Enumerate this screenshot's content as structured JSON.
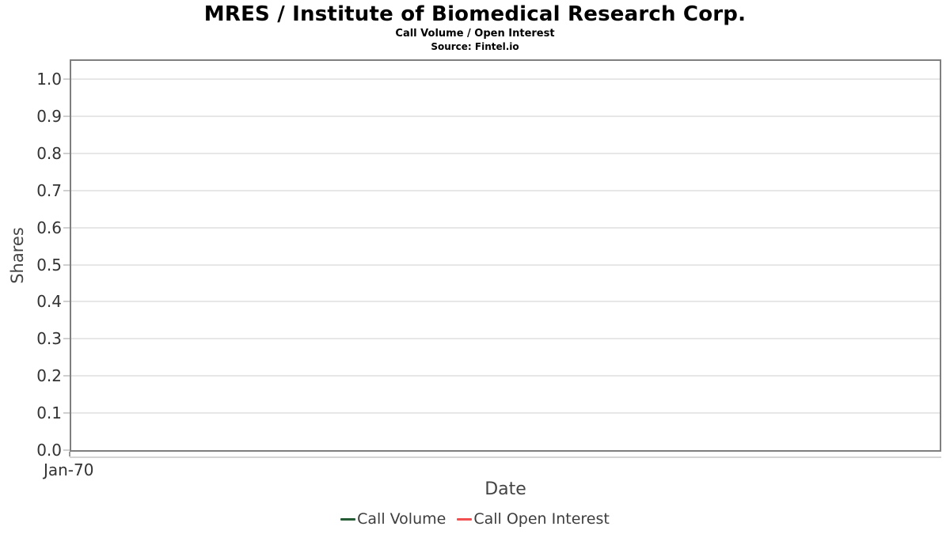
{
  "header": {
    "title": "MRES / Institute of Biomedical Research Corp.",
    "subtitle": "Call Volume / Open Interest",
    "source": "Source: Fintel.io"
  },
  "chart_data": {
    "type": "line",
    "title": "MRES / Institute of Biomedical Research Corp.",
    "subtitle": "Call Volume / Open Interest",
    "source": "Source: Fintel.io",
    "xlabel": "Date",
    "ylabel": "Shares",
    "x_tick_labels": [
      "Jan-70"
    ],
    "y_ticks": [
      0.0,
      0.1,
      0.2,
      0.3,
      0.4,
      0.5,
      0.6,
      0.7,
      0.8,
      0.9,
      1.0
    ],
    "y_tick_labels": [
      "0.0",
      "0.1",
      "0.2",
      "0.3",
      "0.4",
      "0.5",
      "0.6",
      "0.7",
      "0.8",
      "0.9",
      "1.0"
    ],
    "ylim": [
      0.0,
      1.0
    ],
    "grid": "horizontal-only",
    "legend_position": "bottom-center",
    "series": [
      {
        "name": "Call Volume",
        "color": "#265c35",
        "x": [],
        "values": []
      },
      {
        "name": "Call Open Interest",
        "color": "#f25050",
        "x": [],
        "values": []
      }
    ]
  },
  "legend": {
    "items": [
      {
        "label": "Call Volume",
        "color": "#265c35"
      },
      {
        "label": "Call Open Interest",
        "color": "#f25050"
      }
    ]
  }
}
